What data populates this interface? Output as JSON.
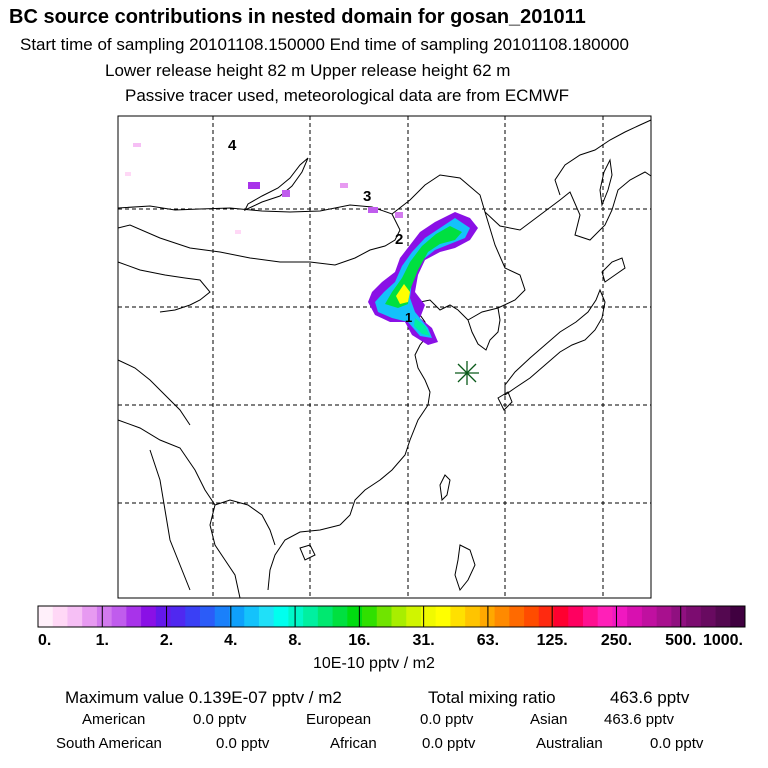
{
  "header": {
    "title": "BC  source contributions in nested domain for gosan_201011",
    "line1": "Start time of sampling 20101108.150000     End time of sampling 20101108.180000",
    "line2": "Lower release height   82 m          Upper release height   62 m",
    "line3": "Passive tracer used, meteorological data are from ECMWF"
  },
  "chart_data": {
    "type": "heatmap",
    "description_markers": [
      {
        "label": "1"
      },
      {
        "label": "2"
      },
      {
        "label": "3"
      },
      {
        "label": "4"
      }
    ],
    "colorbar": {
      "tick_labels": [
        "0.",
        "1.",
        "2.",
        "4.",
        "8.",
        "16.",
        "31.",
        "63.",
        "125.",
        "250.",
        "500.",
        "1000."
      ],
      "unit": "10E-10 pptv / m2",
      "colors": [
        "#fff0fa",
        "#ffd8f6",
        "#f6bff5",
        "#e79af1",
        "#d27aee",
        "#c05ced",
        "#a833ea",
        "#8a10e6",
        "#6418ea",
        "#5028f0",
        "#3a40f5",
        "#2b5cf8",
        "#1a80fa",
        "#0fa0fb",
        "#14c2fb",
        "#20e0f8",
        "#00ffee",
        "#00f8c8",
        "#00f0a0",
        "#00e870",
        "#00e040",
        "#00dc10",
        "#30e000",
        "#70e400",
        "#a8ee00",
        "#d0f500",
        "#f0fa00",
        "#ffff00",
        "#ffe000",
        "#ffc400",
        "#ffa800",
        "#ff8a00",
        "#ff6a00",
        "#ff4c00",
        "#ff2a10",
        "#ff0030",
        "#ff0060",
        "#ff1090",
        "#ff20b8",
        "#f018c0",
        "#d810b0",
        "#c010a0",
        "#a8108e",
        "#901080",
        "#7c0c70",
        "#680a60",
        "#540850",
        "#400040"
      ]
    }
  },
  "stats": {
    "max_value": "Maximum value  0.139E-07 pptv / m2",
    "total_label": "Total mixing ratio",
    "total_value": "463.6 pptv",
    "american_label": "American",
    "american_value": "0.0 pptv",
    "european_label": "European",
    "european_value": "0.0 pptv",
    "asian_label": "Asian",
    "asian_value": "463.6 pptv",
    "south_american_label": "South American",
    "south_american_value": "0.0 pptv",
    "african_label": "African",
    "african_value": "0.0 pptv",
    "australian_label": "Australian",
    "australian_value": "0.0 pptv"
  }
}
